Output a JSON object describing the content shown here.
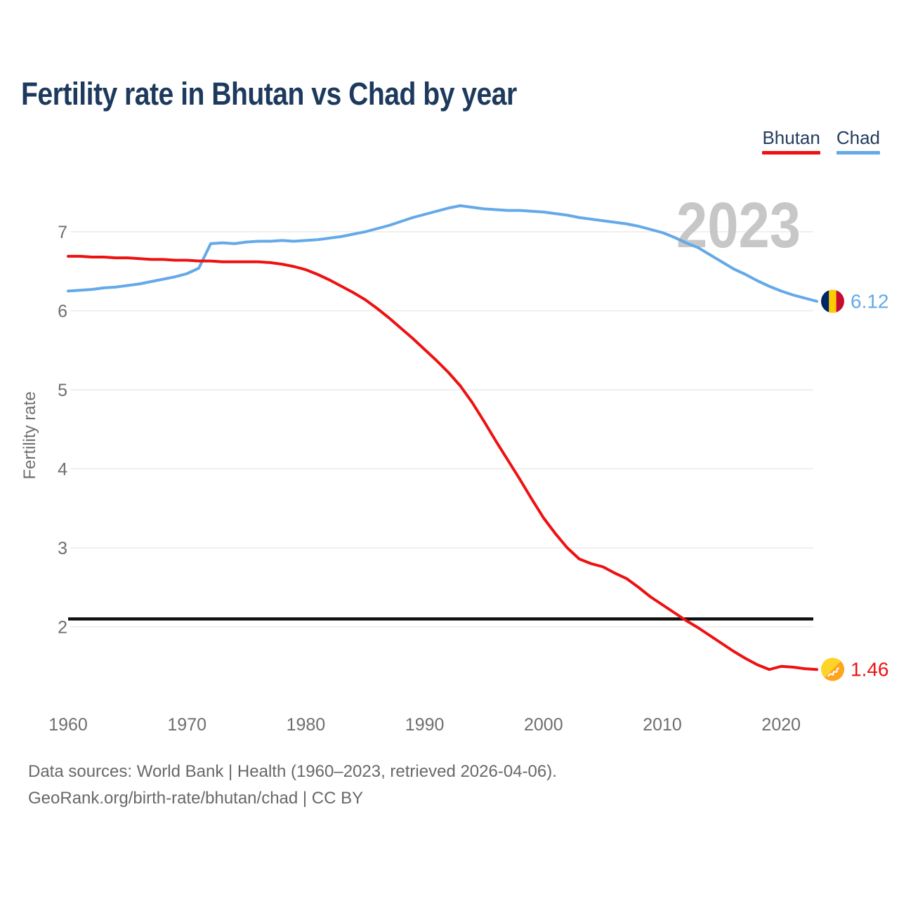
{
  "header": {
    "title": "Fertility rate in Bhutan vs Chad by year"
  },
  "legend": {
    "items": [
      {
        "label": "Bhutan",
        "color": "#ee1111"
      },
      {
        "label": "Chad",
        "color": "#64a9e8"
      }
    ]
  },
  "watermark": {
    "text": "2023"
  },
  "chart_data": {
    "type": "line",
    "title": "Fertility rate in Bhutan vs Chad by year",
    "xlabel": "",
    "ylabel": "Fertility rate",
    "x": [
      1960,
      1961,
      1962,
      1963,
      1964,
      1965,
      1966,
      1967,
      1968,
      1969,
      1970,
      1971,
      1972,
      1973,
      1974,
      1975,
      1976,
      1977,
      1978,
      1979,
      1980,
      1981,
      1982,
      1983,
      1984,
      1985,
      1986,
      1987,
      1988,
      1989,
      1990,
      1991,
      1992,
      1993,
      1994,
      1995,
      1996,
      1997,
      1998,
      1999,
      2000,
      2001,
      2002,
      2003,
      2004,
      2005,
      2006,
      2007,
      2008,
      2009,
      2010,
      2011,
      2012,
      2013,
      2014,
      2015,
      2016,
      2017,
      2018,
      2019,
      2020,
      2021,
      2022,
      2023
    ],
    "series": [
      {
        "name": "Bhutan",
        "color": "#ee1111",
        "values": [
          6.69,
          6.69,
          6.68,
          6.68,
          6.67,
          6.67,
          6.66,
          6.65,
          6.65,
          6.64,
          6.64,
          6.63,
          6.63,
          6.62,
          6.62,
          6.62,
          6.62,
          6.61,
          6.59,
          6.56,
          6.52,
          6.46,
          6.39,
          6.31,
          6.23,
          6.14,
          6.03,
          5.91,
          5.78,
          5.65,
          5.51,
          5.37,
          5.22,
          5.05,
          4.84,
          4.6,
          4.35,
          4.11,
          3.87,
          3.62,
          3.38,
          3.18,
          3.0,
          2.86,
          2.8,
          2.76,
          2.68,
          2.61,
          2.5,
          2.38,
          2.28,
          2.18,
          2.08,
          1.99,
          1.89,
          1.79,
          1.69,
          1.6,
          1.52,
          1.46,
          1.5,
          1.49,
          1.47,
          1.46
        ]
      },
      {
        "name": "Chad",
        "color": "#64a9e8",
        "values": [
          6.25,
          6.26,
          6.27,
          6.29,
          6.3,
          6.32,
          6.34,
          6.37,
          6.4,
          6.43,
          6.47,
          6.54,
          6.85,
          6.86,
          6.85,
          6.87,
          6.88,
          6.88,
          6.89,
          6.88,
          6.89,
          6.9,
          6.92,
          6.94,
          6.97,
          7.0,
          7.04,
          7.08,
          7.13,
          7.18,
          7.22,
          7.26,
          7.3,
          7.33,
          7.31,
          7.29,
          7.28,
          7.27,
          7.27,
          7.26,
          7.25,
          7.23,
          7.21,
          7.18,
          7.16,
          7.14,
          7.12,
          7.1,
          7.07,
          7.03,
          6.99,
          6.93,
          6.86,
          6.8,
          6.71,
          6.62,
          6.53,
          6.46,
          6.38,
          6.31,
          6.25,
          6.2,
          6.16,
          6.12
        ]
      }
    ],
    "xticks": [
      1960,
      1970,
      1980,
      1990,
      2000,
      2010,
      2020
    ],
    "yticks": [
      2,
      3,
      4,
      5,
      6,
      7
    ],
    "ylim": [
      1.2,
      7.45
    ],
    "grid": "horizontal",
    "legend_position": "top-right",
    "reference_line": {
      "value": 2.1,
      "color": "#111111"
    },
    "end_labels": [
      {
        "series": "Chad",
        "value": "6.12"
      },
      {
        "series": "Bhutan",
        "value": "1.46"
      }
    ]
  },
  "footer": {
    "line1": "Data sources: World Bank | Health (1960–2023, retrieved 2026-04-06).",
    "line2": "GeoRank.org/birth-rate/bhutan/chad | CC BY"
  },
  "colors": {
    "bhutan_line": "#ee1111",
    "chad_line": "#64a9e8",
    "grid": "#ebebeb",
    "tick_text": "#6e6e6e",
    "watermark": "#c7c7c7",
    "title_text": "#1d3a5c",
    "reference_line": "#111111",
    "footer_text": "#686868"
  }
}
